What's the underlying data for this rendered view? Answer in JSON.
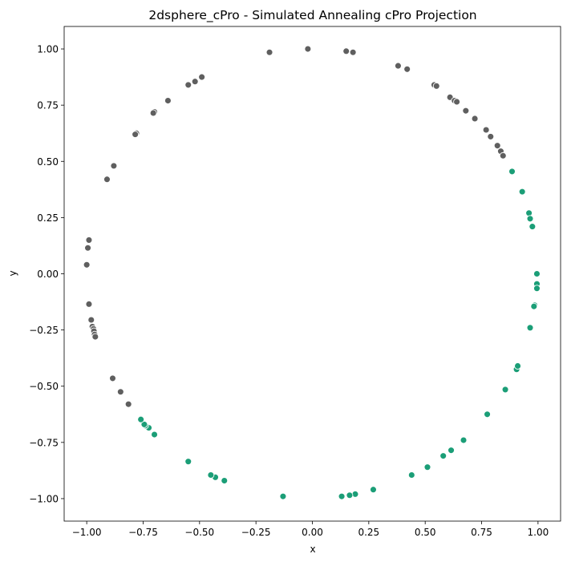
{
  "chart_data": {
    "type": "scatter",
    "title": "2dsphere_cPro - Simulated Annealing cPro Projection",
    "xlabel": "x",
    "ylabel": "y",
    "xlim": [
      -1.1,
      1.1
    ],
    "ylim": [
      -1.1,
      1.1
    ],
    "xticks": [
      -1.0,
      -0.75,
      -0.5,
      -0.25,
      0.0,
      0.25,
      0.5,
      0.75,
      1.0
    ],
    "xtick_labels": [
      "−1.00",
      "−0.75",
      "−0.50",
      "−0.25",
      "0.00",
      "0.25",
      "0.50",
      "0.75",
      "1.00"
    ],
    "yticks": [
      -1.0,
      -0.75,
      -0.5,
      -0.25,
      0.0,
      0.25,
      0.5,
      0.75,
      1.0
    ],
    "ytick_labels": [
      "−1.00",
      "−0.75",
      "−0.50",
      "−0.25",
      "0.00",
      "0.25",
      "0.50",
      "0.75",
      "1.00"
    ],
    "grid": false,
    "legend": "none",
    "series": [
      {
        "color": "#5f5f5f",
        "points": [
          [
            -0.19,
            0.985
          ],
          [
            -0.02,
            1.0
          ],
          [
            0.15,
            0.99
          ],
          [
            0.18,
            0.985
          ],
          [
            0.38,
            0.925
          ],
          [
            0.42,
            0.91
          ],
          [
            0.54,
            0.84
          ],
          [
            0.55,
            0.835
          ],
          [
            0.61,
            0.785
          ],
          [
            0.63,
            0.77
          ],
          [
            0.64,
            0.765
          ],
          [
            0.68,
            0.725
          ],
          [
            0.72,
            0.69
          ],
          [
            0.77,
            0.64
          ],
          [
            0.79,
            0.61
          ],
          [
            0.82,
            0.57
          ],
          [
            0.835,
            0.545
          ],
          [
            0.845,
            0.525
          ],
          [
            -0.49,
            0.875
          ],
          [
            -0.52,
            0.855
          ],
          [
            -0.55,
            0.84
          ],
          [
            -0.64,
            0.77
          ],
          [
            -0.7,
            0.72
          ],
          [
            -0.705,
            0.715
          ],
          [
            -0.78,
            0.625
          ],
          [
            -0.785,
            0.62
          ],
          [
            -0.88,
            0.48
          ],
          [
            -0.91,
            0.42
          ],
          [
            -0.99,
            0.15
          ],
          [
            -0.995,
            0.115
          ],
          [
            -1.0,
            0.04
          ],
          [
            -0.99,
            -0.135
          ],
          [
            -0.98,
            -0.205
          ],
          [
            -0.975,
            -0.235
          ],
          [
            -0.97,
            -0.245
          ],
          [
            -0.968,
            -0.255
          ],
          [
            -0.965,
            -0.27
          ],
          [
            -0.962,
            -0.28
          ],
          [
            -0.885,
            -0.465
          ],
          [
            -0.85,
            -0.525
          ],
          [
            -0.815,
            -0.58
          ],
          [
            -0.76,
            -0.645
          ]
        ]
      },
      {
        "color": "#1b9e77",
        "points": [
          [
            0.885,
            0.455
          ],
          [
            0.93,
            0.365
          ],
          [
            0.96,
            0.27
          ],
          [
            0.965,
            0.245
          ],
          [
            0.975,
            0.21
          ],
          [
            0.995,
            0.0
          ],
          [
            0.995,
            -0.045
          ],
          [
            0.995,
            -0.065
          ],
          [
            0.985,
            -0.14
          ],
          [
            0.982,
            -0.145
          ],
          [
            0.965,
            -0.24
          ],
          [
            0.905,
            -0.425
          ],
          [
            0.91,
            -0.41
          ],
          [
            0.855,
            -0.515
          ],
          [
            0.775,
            -0.625
          ],
          [
            0.67,
            -0.74
          ],
          [
            0.615,
            -0.785
          ],
          [
            0.58,
            -0.81
          ],
          [
            0.51,
            -0.86
          ],
          [
            0.44,
            -0.895
          ],
          [
            0.27,
            -0.96
          ],
          [
            0.19,
            -0.98
          ],
          [
            0.165,
            -0.985
          ],
          [
            0.13,
            -0.99
          ],
          [
            -0.13,
            -0.99
          ],
          [
            -0.39,
            -0.92
          ],
          [
            -0.43,
            -0.905
          ],
          [
            -0.45,
            -0.895
          ],
          [
            -0.55,
            -0.835
          ],
          [
            -0.7,
            -0.715
          ],
          [
            -0.725,
            -0.685
          ],
          [
            -0.74,
            -0.675
          ],
          [
            -0.745,
            -0.67
          ],
          [
            -0.76,
            -0.648
          ]
        ]
      }
    ]
  }
}
